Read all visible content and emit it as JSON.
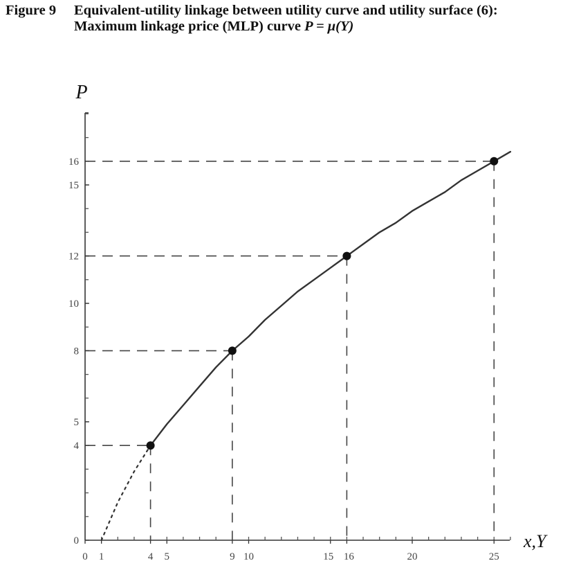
{
  "caption": {
    "figure_label": "Figure 9",
    "title_line1": "Equivalent-utility linkage between utility curve and utility surface (6):",
    "title_line2_prefix": "Maximum linkage price (MLP) curve",
    "title_line2_equation": "P = μ(Y)"
  },
  "chart_data": {
    "type": "line",
    "title": "Equivalent-utility linkage between utility curve and utility surface (6): Maximum linkage price (MLP) curve P = μ(Y)",
    "xlabel": "x,Y",
    "ylabel": "P",
    "xlim": [
      0,
      26
    ],
    "ylim": [
      0,
      18
    ],
    "x_ticks": [
      0,
      1,
      4,
      5,
      9,
      10,
      15,
      16,
      20,
      25
    ],
    "y_ticks": [
      0,
      4,
      5,
      8,
      10,
      12,
      15,
      16
    ],
    "series": [
      {
        "style": "dotted",
        "x": [
          1,
          2,
          3,
          4
        ],
        "y": [
          0,
          1.6,
          2.9,
          4
        ]
      },
      {
        "style": "solid",
        "x": [
          4,
          5,
          6,
          7,
          8,
          9,
          10,
          11,
          12,
          13,
          14,
          15,
          16,
          17,
          18,
          19,
          20,
          21,
          22,
          23,
          24,
          25,
          26
        ],
        "y": [
          4,
          4.9,
          5.7,
          6.5,
          7.3,
          8,
          8.6,
          9.3,
          9.9,
          10.5,
          11,
          11.5,
          12,
          12.5,
          13,
          13.4,
          13.9,
          14.3,
          14.7,
          15.2,
          15.6,
          16,
          16.4
        ]
      }
    ],
    "highlighted_points": [
      {
        "x": 4,
        "y": 4
      },
      {
        "x": 9,
        "y": 8
      },
      {
        "x": 16,
        "y": 12
      },
      {
        "x": 25,
        "y": 16
      }
    ],
    "grid": false,
    "legend": "none"
  }
}
